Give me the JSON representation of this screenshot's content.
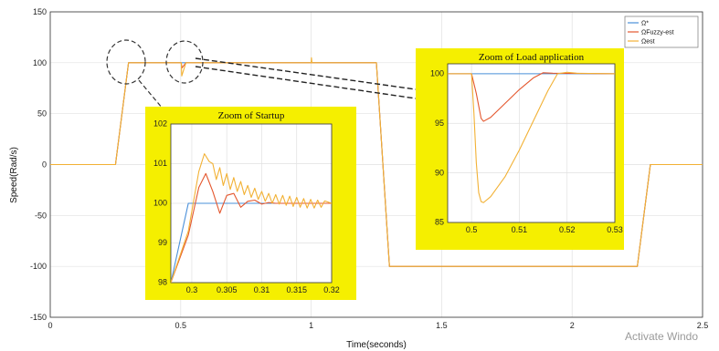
{
  "chart_data": {
    "type": "line",
    "xlabel": "Time(seconds)",
    "ylabel": "Speed(Rad/s)",
    "xlim": [
      0,
      2.5
    ],
    "ylim": [
      -150,
      150
    ],
    "grid": true,
    "legend_position": "top-right",
    "xticks": [
      "0",
      "0.5",
      "1",
      "1.5",
      "2",
      "2.5"
    ],
    "yticks": [
      "150",
      "100",
      "50",
      "0",
      "-50",
      "-100",
      "-150"
    ],
    "series": [
      {
        "name": "Ω*",
        "color": "#4a90d9",
        "points": [
          [
            0,
            0
          ],
          [
            0.25,
            0
          ],
          [
            0.3,
            100
          ],
          [
            1.25,
            100
          ],
          [
            1.3,
            -100
          ],
          [
            2.25,
            -100
          ],
          [
            2.3,
            0
          ],
          [
            2.5,
            0
          ]
        ]
      },
      {
        "name": "ΩFuzzy-est",
        "color": "#e4572e",
        "points": [
          [
            0,
            0
          ],
          [
            0.25,
            0
          ],
          [
            0.3,
            100
          ],
          [
            0.502,
            100
          ],
          [
            0.505,
            95
          ],
          [
            0.52,
            100
          ],
          [
            1.25,
            100
          ],
          [
            1.3,
            -100
          ],
          [
            2.25,
            -100
          ],
          [
            2.3,
            0
          ],
          [
            2.5,
            0
          ]
        ]
      },
      {
        "name": "Ωest",
        "color": "#f2b134",
        "points": [
          [
            0,
            0
          ],
          [
            0.25,
            0
          ],
          [
            0.3,
            100
          ],
          [
            0.502,
            100
          ],
          [
            0.504,
            87
          ],
          [
            0.52,
            100
          ],
          [
            1.0,
            100
          ],
          [
            1.001,
            105
          ],
          [
            1.003,
            100
          ],
          [
            1.25,
            100
          ],
          [
            1.3,
            -100
          ],
          [
            2.25,
            -100
          ],
          [
            2.3,
            0
          ],
          [
            2.5,
            0
          ]
        ]
      }
    ],
    "insets": [
      {
        "title": "Zoom of Startup",
        "xlim": [
          0.297,
          0.32
        ],
        "ylim": [
          98,
          102
        ],
        "xticks": [
          "0.3",
          "0.305",
          "0.31",
          "0.315",
          "0.32"
        ],
        "yticks": [
          "102",
          "101",
          "100",
          "99",
          "98"
        ],
        "series": [
          {
            "name": "Ω*",
            "color": "#4a90d9",
            "points": [
              [
                0.297,
                98
              ],
              [
                0.2995,
                100
              ],
              [
                0.32,
                100
              ]
            ]
          },
          {
            "name": "ΩFuzzy-est",
            "color": "#e4572e",
            "points": [
              [
                0.297,
                98
              ],
              [
                0.2995,
                99.2
              ],
              [
                0.301,
                100.4
              ],
              [
                0.302,
                100.75
              ],
              [
                0.303,
                100.3
              ],
              [
                0.304,
                99.75
              ],
              [
                0.305,
                100.2
              ],
              [
                0.306,
                100.25
              ],
              [
                0.307,
                99.9
              ],
              [
                0.308,
                100.05
              ],
              [
                0.309,
                100.08
              ],
              [
                0.31,
                99.98
              ],
              [
                0.311,
                100.02
              ],
              [
                0.312,
                100.0
              ],
              [
                0.32,
                100.0
              ]
            ]
          },
          {
            "name": "Ωest",
            "color": "#f2b134",
            "points": [
              [
                0.297,
                98
              ],
              [
                0.2995,
                99.3
              ],
              [
                0.301,
                100.8
              ],
              [
                0.3018,
                101.25
              ],
              [
                0.3025,
                101.05
              ],
              [
                0.303,
                101.0
              ],
              [
                0.3035,
                100.6
              ],
              [
                0.304,
                100.9
              ],
              [
                0.3045,
                100.45
              ],
              [
                0.305,
                100.75
              ],
              [
                0.3055,
                100.35
              ],
              [
                0.306,
                100.65
              ],
              [
                0.3065,
                100.3
              ],
              [
                0.307,
                100.55
              ],
              [
                0.3075,
                100.22
              ],
              [
                0.308,
                100.45
              ],
              [
                0.3085,
                100.15
              ],
              [
                0.309,
                100.38
              ],
              [
                0.3095,
                100.1
              ],
              [
                0.31,
                100.3
              ],
              [
                0.3105,
                100.05
              ],
              [
                0.311,
                100.25
              ],
              [
                0.3115,
                100.0
              ],
              [
                0.312,
                100.22
              ],
              [
                0.3125,
                99.98
              ],
              [
                0.313,
                100.2
              ],
              [
                0.3135,
                99.95
              ],
              [
                0.314,
                100.18
              ],
              [
                0.3145,
                99.92
              ],
              [
                0.315,
                100.15
              ],
              [
                0.3155,
                99.9
              ],
              [
                0.316,
                100.12
              ],
              [
                0.3165,
                99.88
              ],
              [
                0.317,
                100.1
              ],
              [
                0.3175,
                99.88
              ],
              [
                0.318,
                100.08
              ],
              [
                0.3185,
                99.9
              ],
              [
                0.319,
                100.06
              ],
              [
                0.32,
                100.0
              ]
            ]
          }
        ]
      },
      {
        "title": "Zoom of Load application",
        "xlim": [
          0.495,
          0.53
        ],
        "ylim": [
          85,
          101
        ],
        "xticks": [
          "0.5",
          "0.51",
          "0.52",
          "0.53"
        ],
        "yticks": [
          "100",
          "95",
          "90",
          "85"
        ],
        "series": [
          {
            "name": "Ω*",
            "color": "#4a90d9",
            "points": [
              [
                0.495,
                100
              ],
              [
                0.53,
                100
              ]
            ]
          },
          {
            "name": "ΩFuzzy-est",
            "color": "#e4572e",
            "points": [
              [
                0.495,
                100
              ],
              [
                0.5,
                100
              ],
              [
                0.501,
                98
              ],
              [
                0.502,
                95.5
              ],
              [
                0.5025,
                95.2
              ],
              [
                0.504,
                95.6
              ],
              [
                0.507,
                97.0
              ],
              [
                0.51,
                98.4
              ],
              [
                0.513,
                99.6
              ],
              [
                0.515,
                100.1
              ],
              [
                0.517,
                100.05
              ],
              [
                0.53,
                100
              ]
            ]
          },
          {
            "name": "Ωest",
            "color": "#f2b134",
            "points": [
              [
                0.495,
                100
              ],
              [
                0.5,
                100
              ],
              [
                0.5005,
                96
              ],
              [
                0.501,
                91
              ],
              [
                0.5015,
                88
              ],
              [
                0.502,
                87.1
              ],
              [
                0.5025,
                87.0
              ],
              [
                0.504,
                87.6
              ],
              [
                0.507,
                89.6
              ],
              [
                0.51,
                92.3
              ],
              [
                0.513,
                95.3
              ],
              [
                0.516,
                98.3
              ],
              [
                0.518,
                100.0
              ],
              [
                0.52,
                100.15
              ],
              [
                0.522,
                100.05
              ],
              [
                0.53,
                100
              ]
            ]
          }
        ]
      }
    ]
  },
  "colors": {
    "reference": "#4a90d9",
    "fuzzy": "#e4572e",
    "est": "#f2b134",
    "inset_frame": "#f5ef00"
  },
  "watermark": "Activate Windo"
}
